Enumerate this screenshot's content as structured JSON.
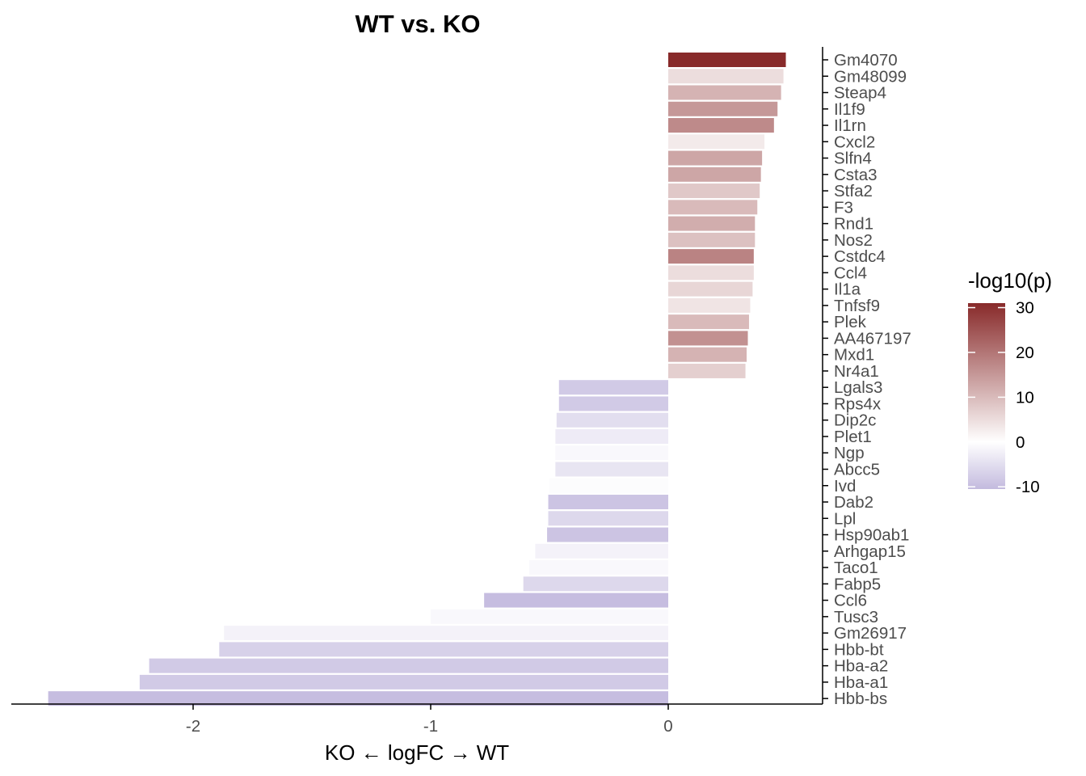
{
  "chart_data": {
    "type": "bar",
    "orientation": "horizontal",
    "title": "WT vs. KO",
    "xlabel": "KO ← logFC → WT",
    "ylabel": "",
    "xlim": [
      -2.7,
      0.65
    ],
    "xticks": [
      -2,
      -1,
      0
    ],
    "xtick_labels": [
      "-2",
      "-1",
      "0"
    ],
    "grid": false,
    "legend": {
      "title": "-log10(p)",
      "placement": "right",
      "ticks": [
        30,
        20,
        10,
        0,
        -10
      ],
      "tick_labels": [
        "30",
        "20",
        "10",
        "0",
        "-10"
      ],
      "range": [
        -10.5,
        31
      ],
      "colors": {
        "low": "#c3bade",
        "mid": "#ffffff",
        "high": "#882a2a"
      }
    },
    "categories": [
      "Gm4070",
      "Gm48099",
      "Steap4",
      "Il1f9",
      "Il1rn",
      "Cxcl2",
      "Slfn4",
      "Csta3",
      "Stfa2",
      "F3",
      "Rnd1",
      "Nos2",
      "Cstdc4",
      "Ccl4",
      "Il1a",
      "Tnfsf9",
      "Plek",
      "AA467197",
      "Mxd1",
      "Nr4a1",
      "Lgals3",
      "Rps4x",
      "Dip2c",
      "Plet1",
      "Ngp",
      "Abcc5",
      "Ivd",
      "Dab2",
      "Lpl",
      "Hsp90ab1",
      "Arhgap15",
      "Taco1",
      "Fabp5",
      "Ccl6",
      "Tusc3",
      "Gm26917",
      "Hbb-bt",
      "Hba-a2",
      "Hba-a1",
      "Hbb-bs"
    ],
    "values": [
      0.495,
      0.485,
      0.475,
      0.46,
      0.445,
      0.405,
      0.395,
      0.39,
      0.385,
      0.375,
      0.365,
      0.365,
      0.36,
      0.36,
      0.355,
      0.345,
      0.34,
      0.335,
      0.33,
      0.325,
      -0.46,
      -0.46,
      -0.47,
      -0.475,
      -0.475,
      -0.475,
      -0.5,
      -0.505,
      -0.505,
      -0.51,
      -0.56,
      -0.585,
      -0.61,
      -0.775,
      -1.0,
      -1.87,
      -1.89,
      -2.185,
      -2.225,
      -2.61
    ],
    "color_values": [
      31,
      5,
      11,
      15,
      17,
      3,
      13,
      13,
      8,
      10,
      12,
      9,
      18,
      5,
      6,
      4,
      10,
      16,
      11,
      7,
      -8,
      -8,
      -5,
      -3,
      -1,
      -4,
      -0.5,
      -9,
      -6,
      -9,
      -2,
      -1,
      -6,
      -10,
      -1,
      -2,
      -7,
      -8,
      -8,
      -10
    ]
  }
}
